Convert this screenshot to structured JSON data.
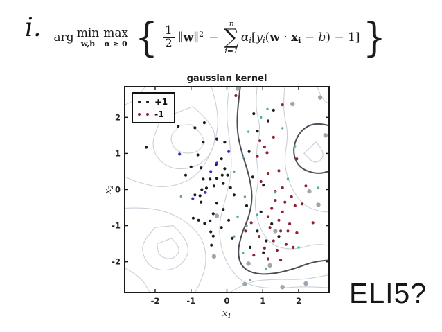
{
  "slide": {
    "item_label": "i.",
    "eli5_text": "ELI5?"
  },
  "formula": {
    "arg": "arg",
    "min": "min",
    "min_sub": "w,b",
    "max": "max",
    "max_sub": "α ≥ 0",
    "lbrace": "{",
    "rbrace": "}",
    "frac_num": "1",
    "frac_den": "2",
    "norm_pre": "∥",
    "norm_w": "w",
    "norm_post": "∥",
    "norm_exp": "2",
    "minus": "−",
    "sum_top": "n",
    "sum_sym": "∑",
    "sum_bot": "i=1",
    "terms": [
      {
        "v": "α",
        "it": true
      },
      {
        "v": "i",
        "it": true,
        "sub": true
      },
      {
        "v": "["
      },
      {
        "v": "y",
        "it": true
      },
      {
        "v": "i",
        "it": true,
        "sub": true
      },
      {
        "v": "("
      },
      {
        "v": "w",
        "bd": true
      },
      {
        "v": " · "
      },
      {
        "v": "x",
        "bd": true
      },
      {
        "v": "i",
        "bd": true,
        "sub": true
      },
      {
        "v": " − "
      },
      {
        "v": "b",
        "it": true
      },
      {
        "v": ")"
      },
      {
        "v": " − 1]"
      }
    ]
  },
  "chart_data": {
    "type": "scatter",
    "title": "gaussian kernel",
    "xlabel": "x",
    "xlabel_sub": "1",
    "ylabel": "x",
    "ylabel_sub": "2",
    "xlim": [
      -2.85,
      2.85
    ],
    "ylim": [
      -2.85,
      2.85
    ],
    "xticks": [
      -2,
      -1,
      0,
      1,
      2
    ],
    "yticks": [
      -2,
      -1,
      0,
      1,
      2
    ],
    "grid": false,
    "legend_position": "upper left",
    "legend": [
      {
        "label": "+1",
        "color": "#1b1b22"
      },
      {
        "label": "-1",
        "color": "#8e2233"
      }
    ],
    "frame_color": "#1a1a1a",
    "contour_color": "#c9d0d8",
    "boundary_color": "#4d4d58",
    "series": [
      {
        "name": "+1",
        "color": "#1b1b22",
        "size": 2.1,
        "points": [
          [
            -2.25,
            1.17
          ],
          [
            -1.36,
            1.75
          ],
          [
            -0.89,
            1.71
          ],
          [
            -0.63,
            1.85
          ],
          [
            -0.66,
            1.31
          ],
          [
            -0.28,
            1.4
          ],
          [
            -0.06,
            1.31
          ],
          [
            -0.81,
            0.96
          ],
          [
            -1.0,
            0.63
          ],
          [
            -0.72,
            0.6
          ],
          [
            -1.15,
            0.4
          ],
          [
            -0.3,
            0.7
          ],
          [
            -0.15,
            0.85
          ],
          [
            -0.66,
            0.29
          ],
          [
            -0.47,
            0.29
          ],
          [
            -0.28,
            0.31
          ],
          [
            -0.13,
            0.4
          ],
          [
            -0.06,
            0.58
          ],
          [
            0.02,
            0.4
          ],
          [
            -0.36,
            0.1
          ],
          [
            -0.57,
            0.04
          ],
          [
            -0.7,
            0.0
          ],
          [
            -0.1,
            0.17
          ],
          [
            0.1,
            0.05
          ],
          [
            0.2,
            -0.15
          ],
          [
            -0.89,
            -0.15
          ],
          [
            -0.75,
            -0.17
          ],
          [
            -0.72,
            -0.35
          ],
          [
            -0.28,
            -0.38
          ],
          [
            -0.1,
            -0.55
          ],
          [
            -0.94,
            -0.79
          ],
          [
            -0.79,
            -0.85
          ],
          [
            -0.62,
            -0.94
          ],
          [
            -0.47,
            -0.87
          ],
          [
            -0.38,
            -0.67
          ],
          [
            -0.45,
            -1.17
          ],
          [
            -0.38,
            -1.29
          ],
          [
            -0.43,
            -1.54
          ],
          [
            -0.15,
            -1.05
          ],
          [
            0.05,
            -0.85
          ],
          [
            0.15,
            -1.35
          ],
          [
            0.75,
            2.1
          ],
          [
            1.3,
            2.2
          ],
          [
            0.85,
            1.62
          ],
          [
            1.15,
            1.9
          ],
          [
            0.62,
            1.05
          ],
          [
            0.72,
            0.35
          ],
          [
            1.02,
            0.12
          ],
          [
            0.55,
            -0.45
          ],
          [
            0.95,
            -0.62
          ],
          [
            1.25,
            -0.95
          ],
          [
            0.85,
            -1.15
          ],
          [
            1.1,
            -1.42
          ],
          [
            0.65,
            -1.6
          ],
          [
            1.45,
            -1.3
          ],
          [
            1.02,
            -1.75
          ]
        ]
      },
      {
        "name": "-1",
        "color": "#8e2233",
        "size": 2.1,
        "points": [
          [
            0.25,
            2.6
          ],
          [
            1.55,
            2.35
          ],
          [
            0.92,
            1.35
          ],
          [
            1.05,
            1.18
          ],
          [
            1.12,
            1.02
          ],
          [
            0.85,
            0.92
          ],
          [
            1.3,
            1.45
          ],
          [
            1.45,
            0.52
          ],
          [
            1.15,
            0.45
          ],
          [
            0.95,
            0.22
          ],
          [
            1.55,
            0.05
          ],
          [
            1.35,
            -0.05
          ],
          [
            2.2,
            0.1
          ],
          [
            1.95,
            0.85
          ],
          [
            1.8,
            -0.2
          ],
          [
            1.35,
            -0.3
          ],
          [
            1.9,
            -0.45
          ],
          [
            1.55,
            -0.62
          ],
          [
            2.1,
            -0.4
          ],
          [
            2.4,
            -0.92
          ],
          [
            1.15,
            -0.75
          ],
          [
            1.45,
            -0.85
          ],
          [
            1.75,
            -0.95
          ],
          [
            1.2,
            -1.05
          ],
          [
            1.5,
            -1.15
          ],
          [
            1.95,
            -1.2
          ],
          [
            0.9,
            -1.3
          ],
          [
            1.3,
            -1.42
          ],
          [
            1.65,
            -1.52
          ],
          [
            1.05,
            -1.62
          ],
          [
            1.4,
            -1.68
          ],
          [
            1.85,
            -1.6
          ],
          [
            0.75,
            -1.82
          ],
          [
            1.15,
            -1.92
          ],
          [
            1.5,
            -1.95
          ],
          [
            1.7,
            -1.15
          ],
          [
            1.25,
            -0.52
          ],
          [
            1.62,
            -0.35
          ],
          [
            0.52,
            -1.15
          ],
          [
            0.68,
            -0.92
          ]
        ]
      },
      {
        "name": "support-teal",
        "color": "#55ad9e",
        "size": 1.7,
        "points": [
          [
            1.13,
            2.23
          ],
          [
            0.95,
            2.0
          ],
          [
            0.6,
            1.6
          ],
          [
            1.55,
            1.7
          ],
          [
            1.9,
            1.2
          ],
          [
            0.45,
            0.9
          ],
          [
            0.2,
            0.5
          ],
          [
            1.7,
            0.3
          ],
          [
            2.55,
            0.05
          ],
          [
            0.5,
            -0.2
          ],
          [
            1.35,
            -0.08
          ],
          [
            0.3,
            -0.75
          ],
          [
            0.85,
            -0.7
          ],
          [
            0.55,
            -1.0
          ],
          [
            0.2,
            -1.3
          ],
          [
            0.45,
            -1.75
          ],
          [
            2.0,
            -1.6
          ],
          [
            1.1,
            -2.2
          ],
          [
            0.65,
            -2.5
          ],
          [
            -1.28,
            -0.19
          ]
        ]
      },
      {
        "name": "support-gray",
        "color": "#a0a6ae",
        "size": 3.2,
        "points": [
          [
            1.83,
            2.37
          ],
          [
            2.6,
            2.55
          ],
          [
            0.3,
            2.8
          ],
          [
            2.75,
            1.5
          ],
          [
            -0.28,
            -0.73
          ],
          [
            -0.36,
            -1.85
          ],
          [
            2.3,
            -0.05
          ],
          [
            2.55,
            -0.42
          ],
          [
            1.35,
            -1.15
          ],
          [
            1.2,
            -2.1
          ],
          [
            0.6,
            -2.05
          ],
          [
            0.5,
            -2.62
          ],
          [
            1.55,
            -2.7
          ],
          [
            2.2,
            -2.6
          ]
        ]
      },
      {
        "name": "misc-blue",
        "color": "#3333b4",
        "size": 2.1,
        "points": [
          [
            -1.32,
            0.98
          ],
          [
            -0.28,
            0.73
          ],
          [
            -0.45,
            0.5
          ],
          [
            -0.95,
            -0.25
          ],
          [
            0.05,
            1.05
          ],
          [
            -0.6,
            -0.08
          ]
        ]
      }
    ],
    "contours": {
      "boundary": [
        {
          "closed": false,
          "pts": [
            [
              0.38,
              2.9
            ],
            [
              0.3,
              2.3
            ],
            [
              0.28,
              1.6
            ],
            [
              0.42,
              1.0
            ],
            [
              0.62,
              0.4
            ],
            [
              0.72,
              -0.2
            ],
            [
              0.62,
              -0.75
            ],
            [
              0.42,
              -1.2
            ],
            [
              0.3,
              -1.7
            ],
            [
              0.38,
              -2.1
            ],
            [
              0.7,
              -2.32
            ],
            [
              1.2,
              -2.35
            ],
            [
              1.8,
              -2.22
            ],
            [
              2.4,
              -2.0
            ],
            [
              2.9,
              -1.95
            ]
          ]
        },
        {
          "closed": false,
          "pts": [
            [
              2.9,
              1.75
            ],
            [
              2.5,
              1.88
            ],
            [
              2.02,
              1.62
            ],
            [
              1.82,
              1.08
            ],
            [
              2.0,
              0.6
            ],
            [
              2.52,
              0.42
            ],
            [
              2.9,
              0.52
            ]
          ]
        }
      ],
      "light": [
        {
          "closed": true,
          "pts": [
            [
              -1.0,
              1.8
            ],
            [
              -0.55,
              1.45
            ],
            [
              -0.8,
              1.0
            ],
            [
              -1.4,
              1.02
            ],
            [
              -1.62,
              1.45
            ],
            [
              -1.3,
              1.78
            ]
          ]
        },
        {
          "closed": true,
          "pts": [
            [
              -0.95,
              2.3
            ],
            [
              -0.35,
              1.8
            ],
            [
              -0.33,
              1.15
            ],
            [
              -0.8,
              0.6
            ],
            [
              -1.65,
              0.55
            ],
            [
              -2.15,
              1.15
            ],
            [
              -1.85,
              1.95
            ]
          ]
        },
        {
          "closed": false,
          "pts": [
            [
              -0.45,
              2.9
            ],
            [
              -0.22,
              2.2
            ],
            [
              -0.3,
              1.3
            ],
            [
              -0.8,
              0.35
            ],
            [
              -1.7,
              0.02
            ],
            [
              -2.5,
              0.2
            ],
            [
              -2.9,
              0.38
            ]
          ]
        },
        {
          "closed": false,
          "pts": [
            [
              -2.25,
              2.9
            ],
            [
              -2.5,
              2.5
            ],
            [
              -2.9,
              2.32
            ]
          ]
        },
        {
          "closed": false,
          "pts": [
            [
              0.08,
              2.9
            ],
            [
              -0.03,
              2.2
            ],
            [
              0.07,
              1.4
            ],
            [
              0.15,
              0.6
            ],
            [
              -0.02,
              -0.2
            ],
            [
              -0.22,
              -0.9
            ],
            [
              -0.18,
              -1.6
            ],
            [
              0.08,
              -2.2
            ],
            [
              0.5,
              -2.62
            ],
            [
              1.2,
              -2.75
            ],
            [
              2.1,
              -2.68
            ],
            [
              2.9,
              -2.72
            ]
          ]
        },
        {
          "closed": true,
          "pts": [
            [
              -1.5,
              -1.0
            ],
            [
              -0.95,
              -1.5
            ],
            [
              -1.3,
              -2.2
            ],
            [
              -2.1,
              -2.25
            ],
            [
              -2.45,
              -1.6
            ],
            [
              -2.0,
              -1.05
            ]
          ]
        },
        {
          "closed": true,
          "pts": [
            [
              -1.55,
              -1.35
            ],
            [
              -1.25,
              -1.62
            ],
            [
              -1.5,
              -1.95
            ],
            [
              -1.9,
              -1.85
            ],
            [
              -1.95,
              -1.5
            ]
          ]
        },
        {
          "closed": false,
          "pts": [
            [
              -2.9,
              -0.52
            ],
            [
              -2.2,
              -0.48
            ],
            [
              -1.35,
              -0.72
            ],
            [
              -0.68,
              -1.3
            ],
            [
              -0.55,
              -2.0
            ],
            [
              -0.75,
              -2.6
            ],
            [
              -0.92,
              -2.9
            ]
          ]
        },
        {
          "closed": false,
          "pts": [
            [
              -2.9,
              -2.15
            ],
            [
              -2.42,
              -2.38
            ],
            [
              -2.12,
              -2.9
            ]
          ]
        },
        {
          "closed": false,
          "pts": [
            [
              0.85,
              2.9
            ],
            [
              0.78,
              2.3
            ],
            [
              0.95,
              1.7
            ],
            [
              0.8,
              1.0
            ],
            [
              0.9,
              0.3
            ],
            [
              0.75,
              -0.4
            ],
            [
              0.92,
              -1.1
            ],
            [
              1.25,
              -1.55
            ],
            [
              1.85,
              -1.68
            ],
            [
              2.45,
              -1.5
            ],
            [
              2.9,
              -1.55
            ]
          ]
        },
        {
          "closed": false,
          "pts": [
            [
              1.62,
              2.9
            ],
            [
              1.55,
              2.25
            ],
            [
              1.72,
              1.55
            ],
            [
              1.58,
              0.75
            ],
            [
              1.78,
              0.05
            ],
            [
              2.15,
              -0.45
            ],
            [
              2.62,
              -0.62
            ],
            [
              2.9,
              -0.62
            ]
          ]
        },
        {
          "closed": true,
          "pts": [
            [
              2.48,
              1.32
            ],
            [
              2.78,
              1.0
            ],
            [
              2.48,
              0.68
            ],
            [
              2.15,
              1.0
            ]
          ]
        },
        {
          "closed": false,
          "pts": [
            [
              2.5,
              2.9
            ],
            [
              2.64,
              2.5
            ],
            [
              2.9,
              2.35
            ]
          ]
        },
        {
          "closed": false,
          "pts": [
            [
              0.0,
              -2.9
            ],
            [
              0.55,
              -2.55
            ],
            [
              1.3,
              -2.48
            ],
            [
              2.1,
              -2.5
            ],
            [
              2.9,
              -2.35
            ]
          ]
        }
      ]
    }
  }
}
